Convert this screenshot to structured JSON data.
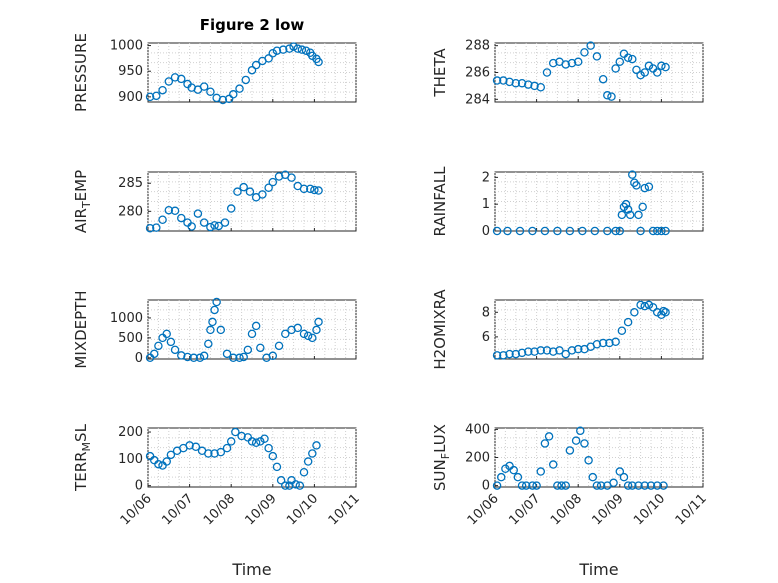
{
  "figure": {
    "title": "Figure 2 low"
  },
  "chart_data": [
    {
      "type": "scatter",
      "ylabel": "PRESSURE",
      "ylim": [
        890,
        1005
      ],
      "yticks": [
        900,
        950,
        1000
      ],
      "xlim": [
        "10/06",
        "10/11"
      ],
      "grid": true,
      "x": [
        0.05,
        0.2,
        0.35,
        0.5,
        0.65,
        0.8,
        0.95,
        1.05,
        1.2,
        1.35,
        1.5,
        1.65,
        1.8,
        1.95,
        2.05,
        2.2,
        2.35,
        2.5,
        2.6,
        2.75,
        2.9,
        3.0,
        3.1,
        3.25,
        3.4,
        3.5,
        3.6,
        3.7,
        3.8,
        3.9,
        3.95,
        4.05,
        4.1
      ],
      "y": [
        900,
        902,
        913,
        930,
        938,
        935,
        925,
        918,
        914,
        920,
        910,
        898,
        894,
        896,
        905,
        916,
        933,
        952,
        962,
        970,
        975,
        985,
        990,
        992,
        994,
        998,
        994,
        992,
        990,
        986,
        980,
        974,
        968
      ]
    },
    {
      "type": "scatter",
      "ylabel": "THETA",
      "ylim": [
        283.8,
        288.2
      ],
      "yticks": [
        284,
        286,
        288
      ],
      "xlim": [
        "10/06",
        "10/11"
      ],
      "grid": true,
      "x": [
        0.05,
        0.2,
        0.35,
        0.5,
        0.65,
        0.8,
        0.95,
        1.1,
        1.25,
        1.4,
        1.55,
        1.7,
        1.85,
        2.0,
        2.15,
        2.3,
        2.45,
        2.6,
        2.7,
        2.8,
        2.9,
        3.0,
        3.1,
        3.2,
        3.3,
        3.4,
        3.5,
        3.6,
        3.7,
        3.8,
        3.9,
        4.0,
        4.1
      ],
      "y": [
        285.4,
        285.4,
        285.3,
        285.2,
        285.2,
        285.1,
        285.0,
        284.9,
        286.0,
        286.7,
        286.8,
        286.6,
        286.7,
        286.8,
        287.5,
        288.0,
        287.2,
        285.5,
        284.3,
        284.2,
        286.3,
        286.8,
        287.4,
        287.1,
        287.0,
        286.2,
        285.8,
        286.0,
        286.5,
        286.3,
        286.0,
        286.5,
        286.4
      ]
    },
    {
      "type": "scatter",
      "ylabel": "AIR_T EMP",
      "ylim": [
        276.5,
        287
      ],
      "yticks": [
        280,
        285
      ],
      "xlim": [
        "10/06",
        "10/11"
      ],
      "grid": true,
      "x": [
        0.05,
        0.2,
        0.35,
        0.5,
        0.65,
        0.8,
        0.95,
        1.05,
        1.2,
        1.35,
        1.5,
        1.6,
        1.7,
        1.85,
        2.0,
        2.15,
        2.3,
        2.45,
        2.6,
        2.75,
        2.9,
        3.0,
        3.15,
        3.3,
        3.45,
        3.6,
        3.75,
        3.9,
        4.0,
        4.1
      ],
      "y": [
        277.0,
        277.1,
        278.5,
        280.2,
        280.1,
        278.8,
        278.0,
        277.3,
        279.6,
        278.0,
        277.2,
        277.5,
        277.4,
        278.0,
        280.5,
        283.5,
        284.3,
        283.5,
        282.5,
        283.0,
        284.2,
        285.2,
        286.2,
        286.5,
        286.0,
        284.5,
        284.0,
        284.0,
        283.8,
        283.7
      ]
    },
    {
      "type": "scatter",
      "ylabel": "RAINFALL",
      "ylim": [
        0,
        2.2
      ],
      "yticks": [
        0,
        1,
        2
      ],
      "xlim": [
        "10/06",
        "10/11"
      ],
      "grid": true,
      "x": [
        0.05,
        0.3,
        0.6,
        0.9,
        1.2,
        1.5,
        1.8,
        2.1,
        2.4,
        2.7,
        2.9,
        3.0,
        3.05,
        3.1,
        3.15,
        3.2,
        3.25,
        3.3,
        3.35,
        3.4,
        3.45,
        3.5,
        3.55,
        3.6,
        3.7,
        3.8,
        3.9,
        4.0,
        4.1
      ],
      "y": [
        0,
        0,
        0,
        0,
        0,
        0,
        0,
        0,
        0,
        0,
        0,
        0,
        0.6,
        0.9,
        1.0,
        0.8,
        0.6,
        2.1,
        1.8,
        1.7,
        0.6,
        0.0,
        0.9,
        1.6,
        1.65,
        0,
        0,
        0,
        0
      ]
    },
    {
      "type": "scatter",
      "ylabel": "MIXDEPTH",
      "ylim": [
        -30,
        1450
      ],
      "yticks": [
        0,
        500,
        1000
      ],
      "xlim": [
        "10/06",
        "10/11"
      ],
      "grid": true,
      "x": [
        0.05,
        0.15,
        0.25,
        0.35,
        0.45,
        0.55,
        0.65,
        0.8,
        0.95,
        1.1,
        1.25,
        1.35,
        1.45,
        1.5,
        1.55,
        1.6,
        1.65,
        1.75,
        1.9,
        2.05,
        2.2,
        2.3,
        2.4,
        2.5,
        2.6,
        2.7,
        2.85,
        3.0,
        3.15,
        3.3,
        3.45,
        3.6,
        3.75,
        3.85,
        3.95,
        4.05,
        4.1
      ],
      "y": [
        0,
        100,
        300,
        500,
        600,
        400,
        200,
        60,
        20,
        0,
        0,
        50,
        350,
        700,
        900,
        1200,
        1400,
        700,
        100,
        0,
        0,
        20,
        200,
        600,
        800,
        250,
        0,
        50,
        300,
        600,
        700,
        750,
        600,
        550,
        500,
        700,
        900
      ]
    },
    {
      "type": "scatter",
      "ylabel": "H2OMIXRA",
      "ylim": [
        4.2,
        9
      ],
      "yticks": [
        6,
        8
      ],
      "xlim": [
        "10/06",
        "10/11"
      ],
      "grid": true,
      "x": [
        0.05,
        0.2,
        0.35,
        0.5,
        0.65,
        0.8,
        0.95,
        1.1,
        1.25,
        1.4,
        1.55,
        1.7,
        1.85,
        2.0,
        2.15,
        2.3,
        2.45,
        2.6,
        2.75,
        2.9,
        3.05,
        3.2,
        3.35,
        3.5,
        3.6,
        3.7,
        3.8,
        3.9,
        4.0,
        4.05,
        4.1
      ],
      "y": [
        4.5,
        4.5,
        4.6,
        4.6,
        4.7,
        4.8,
        4.8,
        4.9,
        4.9,
        4.8,
        4.9,
        4.6,
        4.9,
        5.0,
        5.0,
        5.2,
        5.4,
        5.5,
        5.5,
        5.6,
        6.5,
        7.2,
        8.0,
        8.6,
        8.5,
        8.6,
        8.4,
        8.0,
        7.8,
        8.1,
        8.0
      ]
    },
    {
      "type": "scatter",
      "ylabel": "TERR_M SL",
      "ylim": [
        -5,
        215
      ],
      "yticks": [
        0,
        100,
        200
      ],
      "xlim": [
        "10/06",
        "10/11"
      ],
      "grid": true,
      "x": [
        0.05,
        0.15,
        0.25,
        0.35,
        0.45,
        0.55,
        0.7,
        0.85,
        1.0,
        1.15,
        1.3,
        1.45,
        1.6,
        1.75,
        1.9,
        2.0,
        2.1,
        2.25,
        2.4,
        2.5,
        2.6,
        2.7,
        2.8,
        2.9,
        3.0,
        3.1,
        3.2,
        3.3,
        3.4,
        3.45,
        3.55,
        3.65,
        3.75,
        3.85,
        3.95,
        4.05
      ],
      "y": [
        110,
        95,
        80,
        75,
        90,
        115,
        130,
        140,
        150,
        145,
        130,
        120,
        120,
        125,
        140,
        165,
        200,
        185,
        180,
        165,
        160,
        165,
        175,
        140,
        110,
        70,
        20,
        0,
        0,
        20,
        5,
        0,
        50,
        90,
        120,
        150
      ]
    },
    {
      "type": "scatter",
      "ylabel": "SUN_F LUX",
      "ylim": [
        -10,
        410
      ],
      "yticks": [
        0,
        200,
        400
      ],
      "xlim": [
        "10/06",
        "10/11"
      ],
      "grid": true,
      "x": [
        0.05,
        0.15,
        0.25,
        0.35,
        0.45,
        0.55,
        0.65,
        0.75,
        0.9,
        1.0,
        1.1,
        1.2,
        1.3,
        1.4,
        1.5,
        1.6,
        1.7,
        1.8,
        1.95,
        2.05,
        2.15,
        2.25,
        2.35,
        2.45,
        2.55,
        2.7,
        2.85,
        3.0,
        3.1,
        3.2,
        3.3,
        3.45,
        3.6,
        3.75,
        3.9,
        4.05
      ],
      "y": [
        0,
        60,
        120,
        140,
        110,
        60,
        0,
        0,
        0,
        0,
        100,
        300,
        350,
        150,
        0,
        0,
        0,
        250,
        320,
        390,
        300,
        180,
        60,
        0,
        0,
        0,
        20,
        100,
        60,
        0,
        0,
        0,
        0,
        0,
        0,
        0
      ]
    }
  ],
  "xticklabels": [
    "10/06",
    "10/07",
    "10/08",
    "10/09",
    "10/10",
    "10/11"
  ],
  "xlabel": "Time",
  "ylabels_display": [
    {
      "main": "PRESSURE",
      "sub": "",
      "rest": ""
    },
    {
      "main": "THETA",
      "sub": "",
      "rest": ""
    },
    {
      "main": "AIR",
      "sub": "T",
      "rest": "EMP"
    },
    {
      "main": "RAINFALL",
      "sub": "",
      "rest": ""
    },
    {
      "main": "MIXDEPTH",
      "sub": "",
      "rest": ""
    },
    {
      "main": "H2OMIXRA",
      "sub": "",
      "rest": ""
    },
    {
      "main": "TERR",
      "sub": "M",
      "rest": "SL"
    },
    {
      "main": "SUN",
      "sub": "F",
      "rest": "LUX"
    }
  ],
  "colors": {
    "marker": "#0072bd",
    "axis": "#262626",
    "grid": "#d0d0d0"
  }
}
